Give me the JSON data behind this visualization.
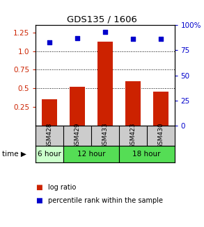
{
  "title": "GDS135 / 1606",
  "samples": [
    "GSM428",
    "GSM429",
    "GSM433",
    "GSM423",
    "GSM430"
  ],
  "log_ratio": [
    0.35,
    0.52,
    1.13,
    0.6,
    0.46
  ],
  "percentile_rank": [
    83,
    87,
    93,
    86,
    86
  ],
  "bar_color": "#cc2200",
  "dot_color": "#0000cc",
  "ylim_left": [
    0.0,
    1.35
  ],
  "ylim_right": [
    0,
    100
  ],
  "yticks_left": [
    0.25,
    0.5,
    0.75,
    1.0,
    1.25
  ],
  "yticks_right": [
    0,
    25,
    50,
    75,
    100
  ],
  "ytick_labels_right": [
    "0",
    "25",
    "50",
    "75",
    "100%"
  ],
  "hlines": [
    0.5,
    0.75,
    1.0
  ],
  "sample_bg_color": "#cccccc",
  "time_groups": [
    {
      "start": 0,
      "end": 0,
      "label": "6 hour",
      "color": "#ccffcc"
    },
    {
      "start": 1,
      "end": 2,
      "label": "12 hour",
      "color": "#55dd55"
    },
    {
      "start": 3,
      "end": 4,
      "label": "18 hour",
      "color": "#55dd55"
    }
  ],
  "background_color": "#ffffff",
  "legend_items": [
    {
      "color": "#cc2200",
      "label": "log ratio"
    },
    {
      "color": "#0000cc",
      "label": "percentile rank within the sample"
    }
  ]
}
